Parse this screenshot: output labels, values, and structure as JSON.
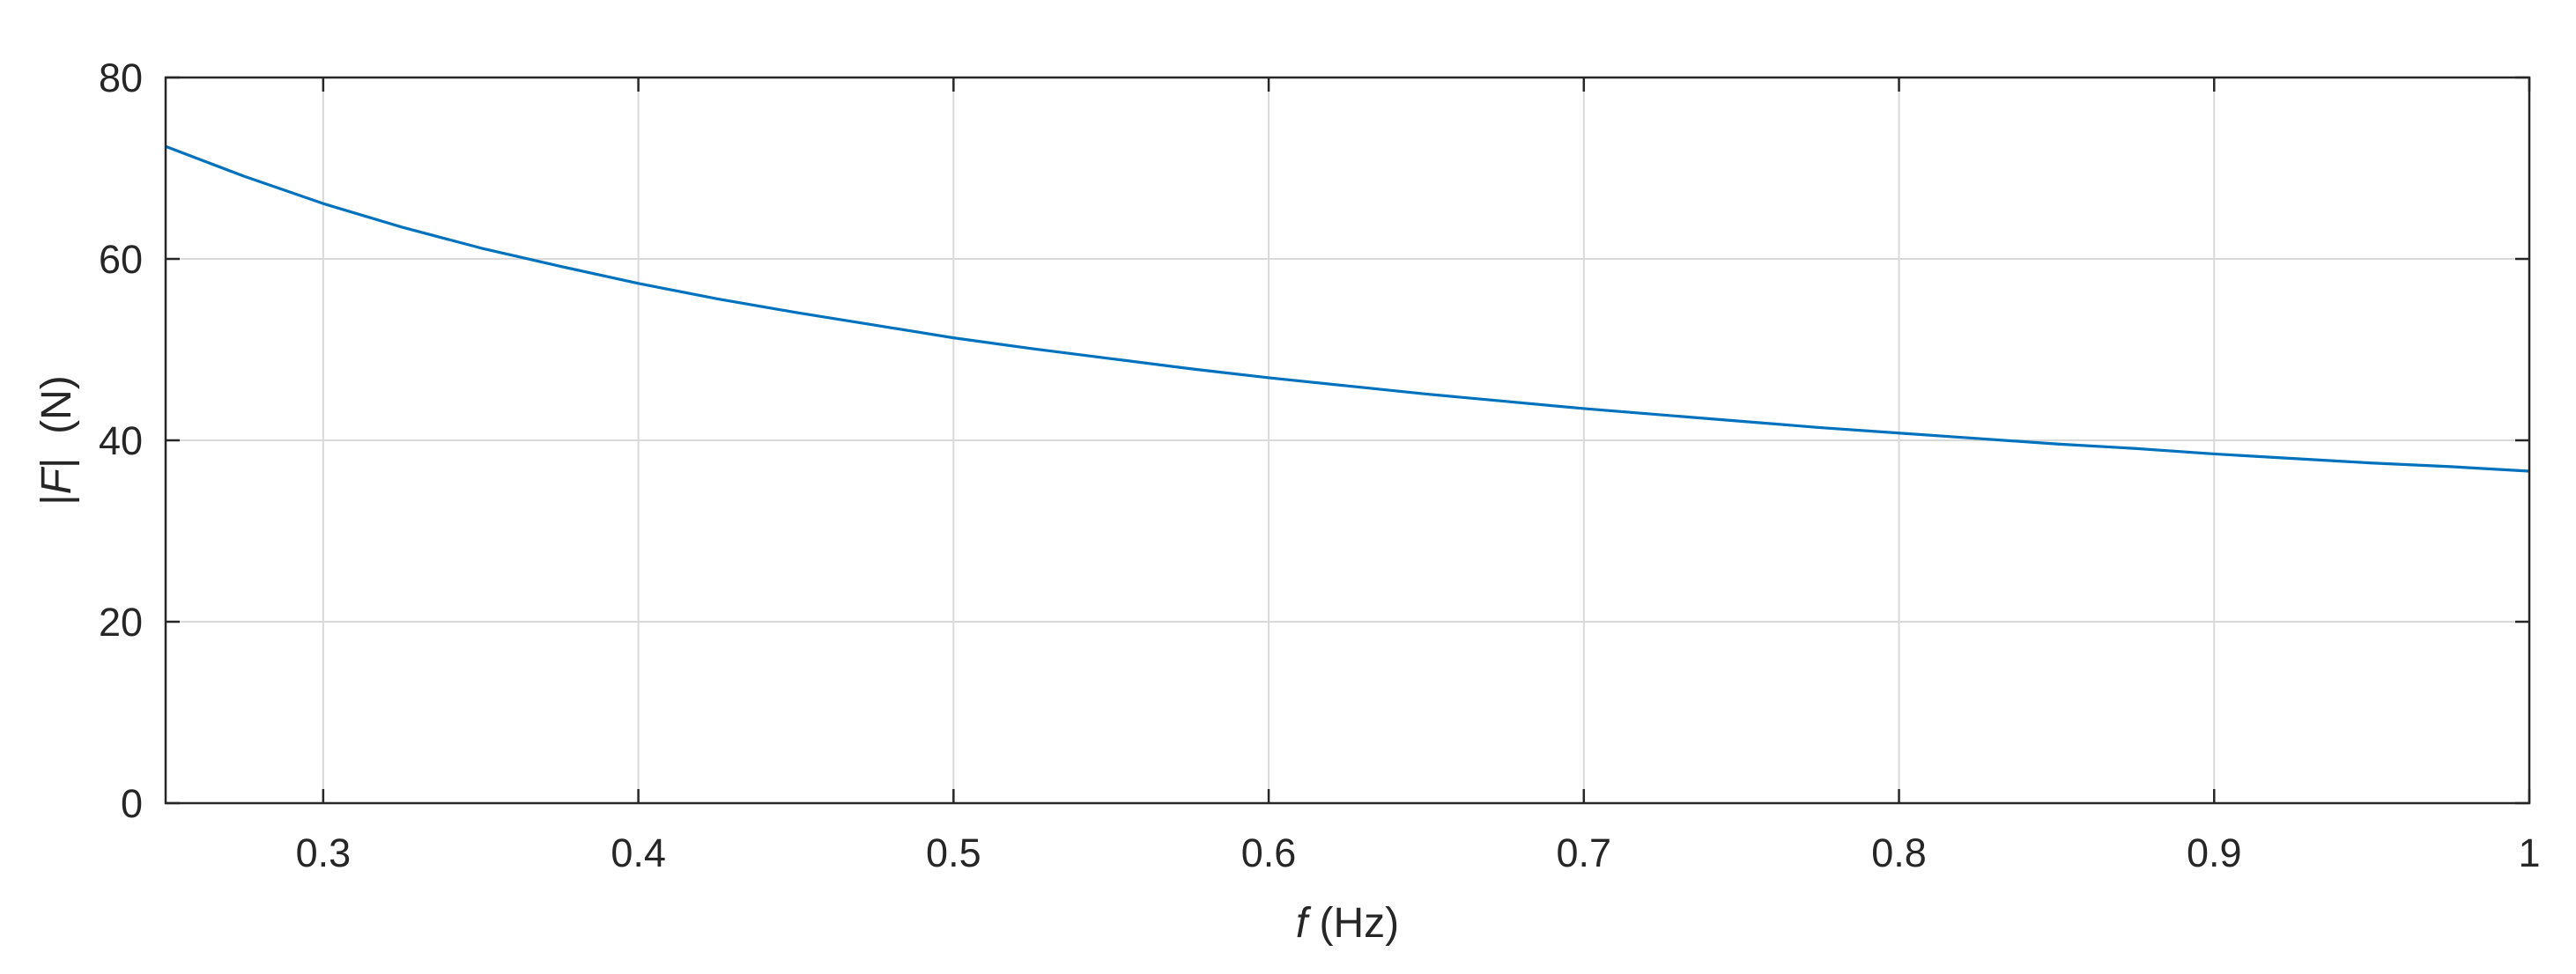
{
  "chart_data": {
    "type": "line",
    "title": "",
    "xlabel_italic": "f",
    "xlabel_rest": " (Hz)",
    "ylabel_pre": "|",
    "ylabel_italic": "F",
    "ylabel_post": "|  (N)",
    "xlim": [
      0.25,
      1.0
    ],
    "ylim": [
      0,
      80
    ],
    "xticks": [
      0.3,
      0.4,
      0.5,
      0.6,
      0.7,
      0.8,
      0.9,
      1.0
    ],
    "xtick_labels": [
      "0.3",
      "0.4",
      "0.5",
      "0.6",
      "0.7",
      "0.8",
      "0.9",
      "1"
    ],
    "yticks": [
      0,
      20,
      40,
      60,
      80
    ],
    "ytick_labels": [
      "0",
      "20",
      "40",
      "60",
      "80"
    ],
    "grid": true,
    "series": [
      {
        "color": "#0072BD",
        "x": [
          0.25,
          0.275,
          0.3,
          0.325,
          0.35,
          0.375,
          0.4,
          0.425,
          0.45,
          0.475,
          0.5,
          0.525,
          0.55,
          0.575,
          0.6,
          0.625,
          0.65,
          0.675,
          0.7,
          0.725,
          0.75,
          0.775,
          0.8,
          0.825,
          0.85,
          0.875,
          0.9,
          0.925,
          0.95,
          0.975,
          1.0
        ],
        "y": [
          72.4,
          69.1,
          66.1,
          63.5,
          61.2,
          59.2,
          57.3,
          55.6,
          54.1,
          52.7,
          51.3,
          50.1,
          49.0,
          47.9,
          46.9,
          46.0,
          45.1,
          44.3,
          43.5,
          42.8,
          42.1,
          41.4,
          40.8,
          40.2,
          39.6,
          39.1,
          38.5,
          38.0,
          37.5,
          37.1,
          36.6
        ]
      }
    ]
  }
}
